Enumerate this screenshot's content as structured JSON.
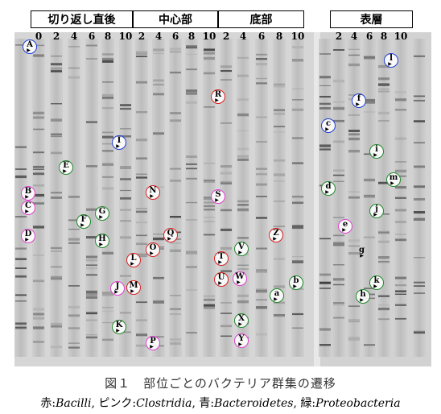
{
  "groups": [
    {
      "label": "切り返し直後",
      "lanes": [
        "0",
        "2",
        "4",
        "6",
        "8",
        "10"
      ]
    },
    {
      "label": "中心部",
      "lanes": [
        "2",
        "4",
        "6",
        "8",
        "10"
      ]
    },
    {
      "label": "底部",
      "lanes": [
        "2",
        "4",
        "6",
        "8",
        "10"
      ]
    },
    {
      "label": "表層",
      "lanes": [
        "2",
        "4",
        "6",
        "8",
        "10"
      ]
    }
  ],
  "bands": {
    "A": "A",
    "B": "B",
    "C": "C",
    "D": "D",
    "E": "E",
    "F": "F",
    "G": "G",
    "H": "H",
    "I": "I",
    "J": "J",
    "K": "K",
    "L": "L",
    "M": "M",
    "N": "N",
    "O": "O",
    "P": "P",
    "Q": "Q",
    "R": "R",
    "S": "S",
    "T": "T",
    "U": "U",
    "V": "V",
    "W": "W",
    "X": "X",
    "Y": "Y",
    "Z": "Z",
    "a": "a",
    "b": "b",
    "c": "c",
    "d": "d",
    "e": "e",
    "f": "f",
    "g": "g",
    "h": "h",
    "i": "i",
    "j": "j",
    "k": "k",
    "l": "l",
    "m": "m"
  },
  "caption": {
    "title": "図１　部位ごとのバクテリア群集の遷移",
    "legend_prefix_red": "赤:",
    "legend_red": "Bacilli",
    "legend_prefix_pink": ",  ピンク:",
    "legend_pink": "Clostridia",
    "legend_prefix_blue": ",  青:",
    "legend_blue": "Bacteroidetes",
    "legend_prefix_green": ",  緑:",
    "legend_green": "Proteobacteria"
  },
  "colors": {
    "red": "#d92020",
    "pink": "#e040d0",
    "blue": "#1f3fd8",
    "green": "#1f8a2a"
  }
}
